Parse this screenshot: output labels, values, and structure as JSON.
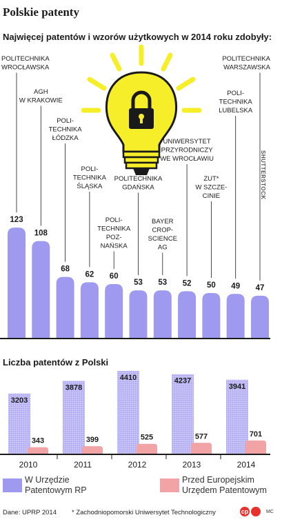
{
  "header": {
    "title": "Polskie patenty",
    "subtitle": "Najwięcej patentów i wzorów użytkowych w 2014 roku zdobyły:",
    "credit": "SHUTTERSTOCK"
  },
  "colors": {
    "bar_blue": "#9f9af0",
    "bar_blue_dot": "#c9c5f7",
    "bar_pink": "#f2a3a6",
    "bulb": "#f7ee2a",
    "dark": "#1a1a1a"
  },
  "icons": [
    "lightbulb-icon",
    "padlock-icon",
    "cp-logo-icon"
  ],
  "chart_data": [
    {
      "type": "bar",
      "title": "Najwięcej patentów i wzorów użytkowych w 2014 roku zdobyły:",
      "categories": [
        "POLITECHNIKA WROCŁAWSKA",
        "AGH W KRAKOWIE",
        "POLI- TECHNIKA ŁÓDZKA",
        "POLI- TECHNIKA ŚLĄSKA",
        "POLI- TECHNIKA POZ- NAŃSKA",
        "POLITECHNIKA GDAŃSKA",
        "BAYER CROP- SCIENCE AG",
        "UNIWERSYTET PRZYRODNICZY WE WROCŁAWIU",
        "ZUT* W SZCZE- CINIE",
        "POLI- TECHNIKA LUBELSKA",
        "POLITECHNIKA WARSZAWSKA"
      ],
      "label_lines": [
        [
          "POLITECHNIKA",
          "WROCŁAWSKA"
        ],
        [
          "AGH",
          "W KRAKOWIE"
        ],
        [
          "POLI-",
          "TECHNIKA",
          "ŁÓDZKA"
        ],
        [
          "POLI-",
          "TECHNIKA",
          "ŚLĄSKA"
        ],
        [
          "POLI-",
          "TECHNIKA",
          "POZ-",
          "NAŃSKA"
        ],
        [
          "POLITECHNIKA",
          "GDAŃSKA"
        ],
        [
          "BAYER",
          "CROP-",
          "SCIENCE",
          "AG"
        ],
        [
          "UNIWERSYTET",
          "PRZYRODNICZY",
          "WE WROCŁAWIU"
        ],
        [
          "ZUT*",
          "W SZCZE-",
          "CINIE"
        ],
        [
          "POLI-",
          "TECHNIKA",
          "LUBELSKA"
        ],
        [
          "POLITECHNIKA",
          "WARSZAWSKA"
        ]
      ],
      "values": [
        123,
        108,
        68,
        62,
        60,
        53,
        53,
        52,
        50,
        49,
        47
      ],
      "ylim": [
        0,
        130
      ]
    },
    {
      "type": "bar",
      "title": "Liczba patentów z Polski",
      "categories": [
        "2010",
        "2011",
        "2012",
        "2013",
        "2014"
      ],
      "series": [
        {
          "name": "W Urzędzie Patentowym RP",
          "values": [
            3203,
            3878,
            4410,
            4237,
            3941
          ]
        },
        {
          "name": "Przed Europejskim Urzędem Patentowym",
          "values": [
            343,
            399,
            525,
            577,
            701
          ]
        }
      ],
      "ylim": [
        0,
        4500
      ]
    }
  ],
  "legend": {
    "blue": [
      "W Urzędzie",
      "Patentowym RP"
    ],
    "pink": [
      "Przed Europejskim",
      "Urzędem Patentowym"
    ]
  },
  "footer": {
    "source": "Dane: UPRP 2014",
    "note": "* Zachodniopomorski Uniwersytet Technologiczny",
    "logo_text": "cp",
    "sign": "MC"
  }
}
